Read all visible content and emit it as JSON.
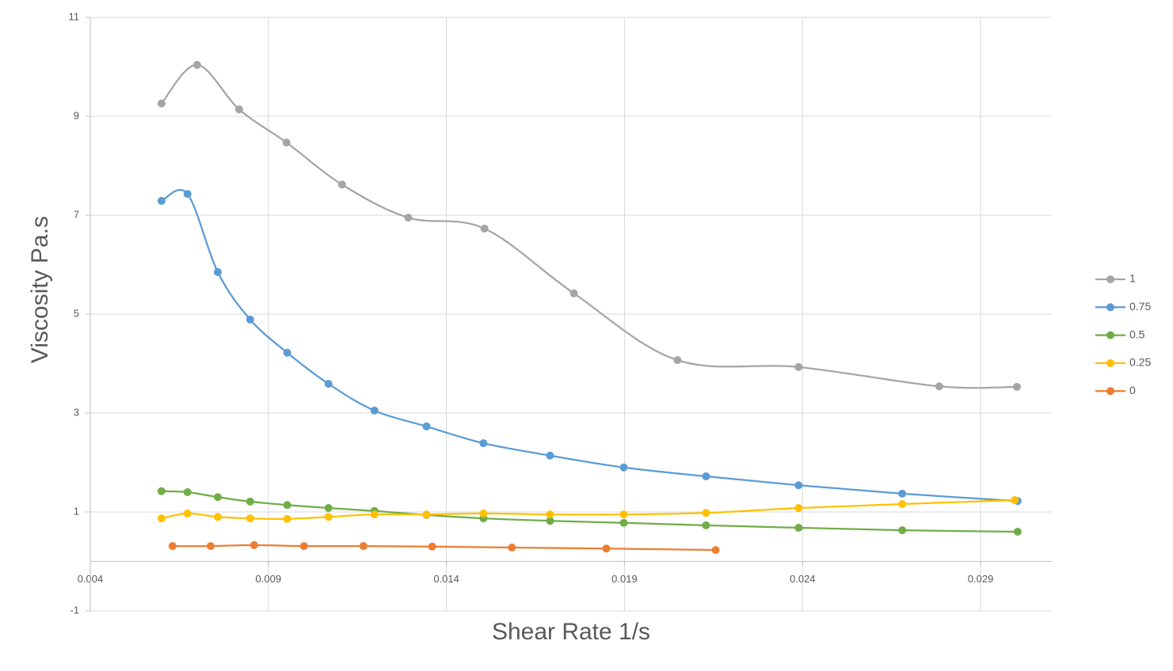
{
  "chart_data": {
    "type": "scatter-smooth",
    "x_label": "Shear Rate 1/s",
    "y_label": "Viscosity Pa.s",
    "xlim": [
      0.004,
      0.031
    ],
    "ylim": [
      -1,
      11
    ],
    "xticks": [
      0.004,
      0.009,
      0.014,
      0.019,
      0.024,
      0.029
    ],
    "yticks": [
      -1,
      1,
      3,
      5,
      7,
      9,
      11
    ],
    "grid": true,
    "legend": "right",
    "series": [
      {
        "name": "1",
        "color": "#a5a5a5",
        "x": [
          0.006,
          0.007,
          0.00818,
          0.00951,
          0.01107,
          0.01293,
          0.01507,
          0.01758,
          0.02049,
          0.02389,
          0.02784,
          0.03002
        ],
        "values": [
          9.26,
          10.04,
          9.14,
          8.47,
          7.62,
          6.95,
          6.73,
          5.42,
          4.07,
          3.93,
          3.54,
          3.53
        ]
      },
      {
        "name": "0.75",
        "color": "#5b9bd5",
        "x": [
          0.006,
          0.00673,
          0.00758,
          0.00849,
          0.00953,
          0.01069,
          0.01198,
          0.01344,
          0.01504,
          0.01691,
          0.01898,
          0.02129,
          0.02389,
          0.0268,
          0.03004
        ],
        "values": [
          7.29,
          7.43,
          5.85,
          4.89,
          4.22,
          3.59,
          3.05,
          2.73,
          2.39,
          2.14,
          1.9,
          1.72,
          1.54,
          1.37,
          1.22
        ]
      },
      {
        "name": "0.5",
        "color": "#70ad47",
        "x": [
          0.006,
          0.00673,
          0.00758,
          0.00849,
          0.00953,
          0.01069,
          0.01198,
          0.01344,
          0.01504,
          0.01691,
          0.01898,
          0.02129,
          0.02389,
          0.0268,
          0.03004
        ],
        "values": [
          1.42,
          1.4,
          1.3,
          1.21,
          1.14,
          1.08,
          1.02,
          0.94,
          0.87,
          0.82,
          0.78,
          0.73,
          0.68,
          0.63,
          0.6
        ]
      },
      {
        "name": "0.25",
        "color": "#ffc000",
        "x": [
          0.006,
          0.00673,
          0.00758,
          0.00849,
          0.00953,
          0.01069,
          0.01198,
          0.01344,
          0.01504,
          0.01691,
          0.01898,
          0.02129,
          0.02389,
          0.0268,
          0.02996
        ],
        "values": [
          0.87,
          0.97,
          0.9,
          0.87,
          0.86,
          0.9,
          0.95,
          0.95,
          0.97,
          0.95,
          0.95,
          0.98,
          1.08,
          1.16,
          1.24
        ]
      },
      {
        "name": "0",
        "color": "#ed7d31",
        "x": [
          0.00631,
          0.00738,
          0.0086,
          0.01,
          0.01167,
          0.0136,
          0.01584,
          0.01849,
          0.02156
        ],
        "values": [
          0.31,
          0.31,
          0.33,
          0.31,
          0.31,
          0.3,
          0.28,
          0.26,
          0.23
        ]
      }
    ]
  }
}
